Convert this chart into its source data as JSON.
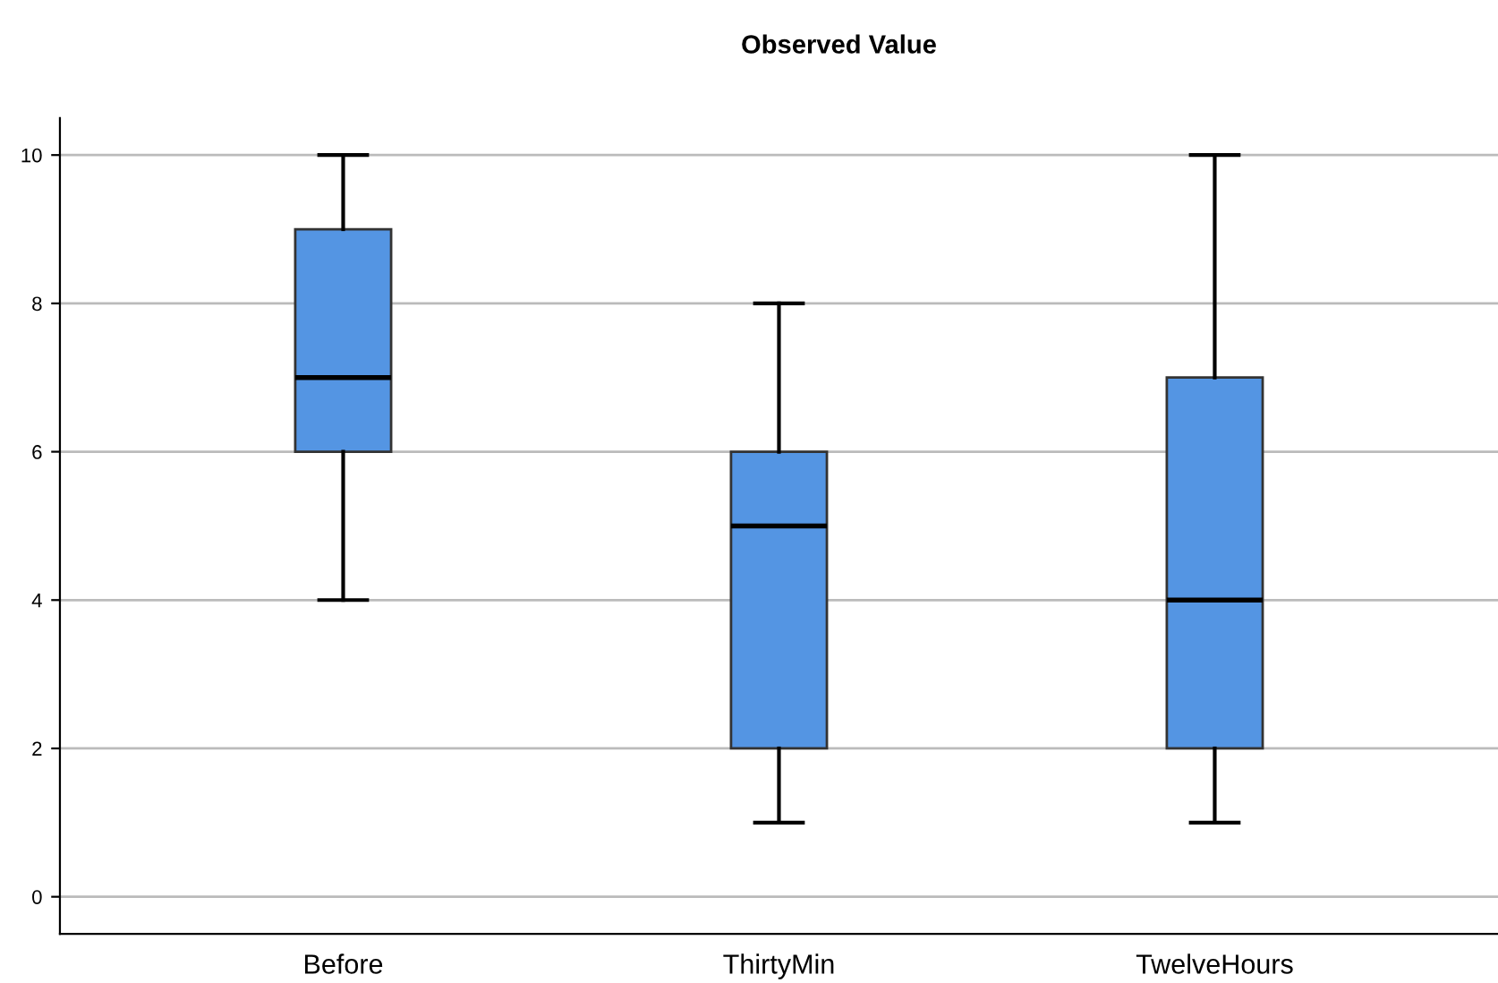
{
  "chart_data": {
    "type": "box",
    "title": "Observed Value",
    "categories": [
      "Before",
      "ThirtyMin",
      "TwelveHours"
    ],
    "series": [
      {
        "color": "#5495e3",
        "boxes": [
          {
            "low": 4,
            "q1": 6,
            "median": 7,
            "q3": 9,
            "high": 10
          },
          {
            "low": 1,
            "q1": 2,
            "median": 5,
            "q3": 6,
            "high": 8
          },
          {
            "low": 1,
            "q1": 2,
            "median": 4,
            "q3": 7,
            "high": 10
          }
        ]
      }
    ],
    "ylim": [
      -0.5,
      10.5
    ],
    "yticks": [
      0,
      2,
      4,
      6,
      8,
      10
    ],
    "grid": "y"
  }
}
